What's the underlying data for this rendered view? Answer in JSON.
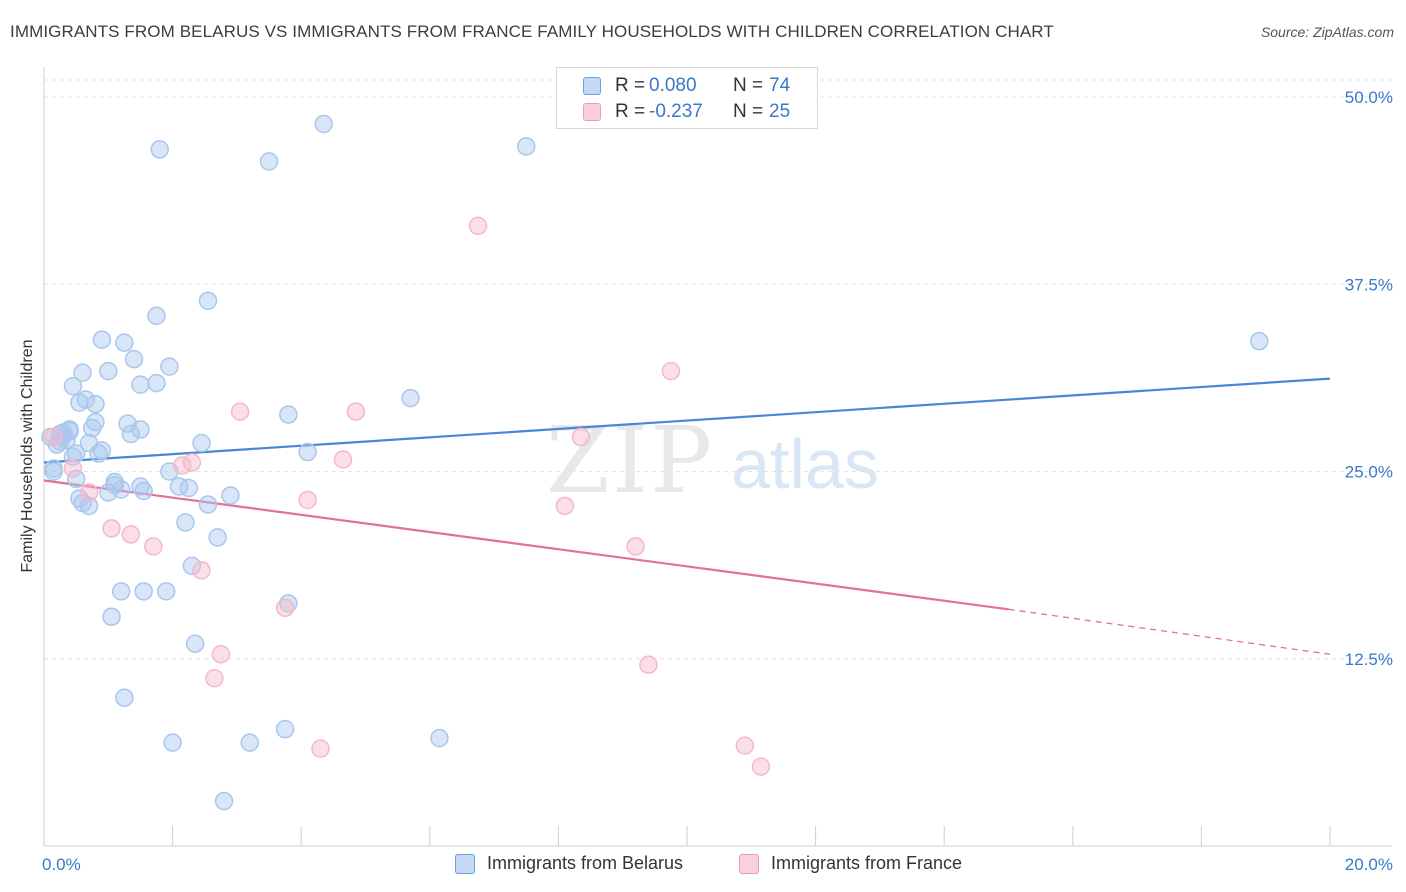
{
  "title": "IMMIGRANTS FROM BELARUS VS IMMIGRANTS FROM FRANCE FAMILY HOUSEHOLDS WITH CHILDREN CORRELATION CHART",
  "source": "Source: ZipAtlas.com",
  "watermark": {
    "zip": "ZIP",
    "atlas": "atlas"
  },
  "stats": [
    {
      "r_label": "R =",
      "r_value": "0.080",
      "n_label": "N =",
      "n_value": "74",
      "color": "#a9c7ee"
    },
    {
      "r_label": "R =",
      "r_value": "-0.237",
      "n_label": "N =",
      "n_value": "25",
      "color": "#f5b8cb"
    }
  ],
  "legend": [
    {
      "label": "Immigrants from Belarus",
      "color": "#a9c7ee"
    },
    {
      "label": "Immigrants from France",
      "color": "#f5b8cb"
    }
  ],
  "chart_data": {
    "type": "scatter",
    "title": "IMMIGRANTS FROM BELARUS VS IMMIGRANTS FROM FRANCE FAMILY HOUSEHOLDS WITH CHILDREN CORRELATION CHART",
    "xlabel": "",
    "ylabel": "Family Households with Children",
    "xlim": [
      0,
      20
    ],
    "ylim": [
      0,
      50
    ],
    "x_tick_labels": [
      "0.0%",
      "20.0%"
    ],
    "y_ticks": [
      12.5,
      25.0,
      37.5,
      50.0
    ],
    "y_tick_labels": [
      "12.5%",
      "25.0%",
      "37.5%",
      "50.0%"
    ],
    "grid": true,
    "series": [
      {
        "name": "Immigrants from Belarus",
        "color": "#4a86d8",
        "fill": "#a9c7ee",
        "trend": {
          "x0": 0,
          "y0": 25.6,
          "x1": 20,
          "y1": 31.2
        },
        "points": [
          [
            0.1,
            27.3
          ],
          [
            0.2,
            26.8
          ],
          [
            0.3,
            27.6
          ],
          [
            0.4,
            27.8
          ],
          [
            0.25,
            27.5
          ],
          [
            0.35,
            27.1
          ],
          [
            0.15,
            25.0
          ],
          [
            0.45,
            26.0
          ],
          [
            0.5,
            24.5
          ],
          [
            0.55,
            23.2
          ],
          [
            0.6,
            22.9
          ],
          [
            0.7,
            26.9
          ],
          [
            0.75,
            27.9
          ],
          [
            0.8,
            28.3
          ],
          [
            0.9,
            26.4
          ],
          [
            1.0,
            23.6
          ],
          [
            1.1,
            24.3
          ],
          [
            1.2,
            23.8
          ],
          [
            1.5,
            24.0
          ],
          [
            0.85,
            26.2
          ],
          [
            0.65,
            29.8
          ],
          [
            0.8,
            29.5
          ],
          [
            0.6,
            31.6
          ],
          [
            0.45,
            30.7
          ],
          [
            0.55,
            29.6
          ],
          [
            1.0,
            31.7
          ],
          [
            0.9,
            33.8
          ],
          [
            1.25,
            33.6
          ],
          [
            1.4,
            32.5
          ],
          [
            1.3,
            28.2
          ],
          [
            1.35,
            27.5
          ],
          [
            1.5,
            27.8
          ],
          [
            1.95,
            32.0
          ],
          [
            1.75,
            35.4
          ],
          [
            0.4,
            27.7
          ],
          [
            0.25,
            27.0
          ],
          [
            2.1,
            24.0
          ],
          [
            1.95,
            25.0
          ],
          [
            2.2,
            21.6
          ],
          [
            2.55,
            22.8
          ],
          [
            2.9,
            23.4
          ],
          [
            2.7,
            20.6
          ],
          [
            2.3,
            18.7
          ],
          [
            3.8,
            28.8
          ],
          [
            4.1,
            26.3
          ],
          [
            5.7,
            29.9
          ],
          [
            1.5,
            30.8
          ],
          [
            1.75,
            30.9
          ],
          [
            2.45,
            26.9
          ],
          [
            2.55,
            36.4
          ],
          [
            1.2,
            17.0
          ],
          [
            1.55,
            17.0
          ],
          [
            1.05,
            15.3
          ],
          [
            1.9,
            17.0
          ],
          [
            2.35,
            13.5
          ],
          [
            1.25,
            9.9
          ],
          [
            2.0,
            6.9
          ],
          [
            3.2,
            6.9
          ],
          [
            3.75,
            7.8
          ],
          [
            6.15,
            7.2
          ],
          [
            2.8,
            3.0
          ],
          [
            1.8,
            46.5
          ],
          [
            3.5,
            45.7
          ],
          [
            4.35,
            48.2
          ],
          [
            7.5,
            46.7
          ],
          [
            18.9,
            33.7
          ],
          [
            0.15,
            25.2
          ],
          [
            1.55,
            23.7
          ],
          [
            2.25,
            23.9
          ],
          [
            3.8,
            16.2
          ],
          [
            0.7,
            22.7
          ],
          [
            0.5,
            26.2
          ],
          [
            1.1,
            24.1
          ],
          [
            0.3,
            27.4
          ]
        ]
      },
      {
        "name": "Immigrants from France",
        "color": "#e3709a",
        "fill": "#f5b8cb",
        "trend": {
          "x0": 0,
          "y0": 24.4,
          "x1": 15.0,
          "y1": 15.8
        },
        "trend_dashed": {
          "x0": 15.0,
          "y0": 15.8,
          "x1": 20,
          "y1": 12.8
        },
        "points": [
          [
            0.15,
            27.3
          ],
          [
            0.45,
            25.2
          ],
          [
            0.7,
            23.6
          ],
          [
            1.05,
            21.2
          ],
          [
            1.35,
            20.8
          ],
          [
            1.7,
            20.0
          ],
          [
            2.15,
            25.4
          ],
          [
            2.3,
            25.6
          ],
          [
            2.45,
            18.4
          ],
          [
            3.05,
            29.0
          ],
          [
            4.1,
            23.1
          ],
          [
            4.65,
            25.8
          ],
          [
            3.75,
            15.9
          ],
          [
            4.85,
            29.0
          ],
          [
            6.75,
            41.4
          ],
          [
            8.1,
            22.7
          ],
          [
            8.35,
            27.3
          ],
          [
            9.2,
            20.0
          ],
          [
            9.75,
            31.7
          ],
          [
            2.75,
            12.8
          ],
          [
            4.3,
            6.5
          ],
          [
            9.4,
            12.1
          ],
          [
            10.9,
            6.7
          ],
          [
            11.15,
            5.3
          ],
          [
            2.65,
            11.2
          ]
        ]
      }
    ]
  }
}
